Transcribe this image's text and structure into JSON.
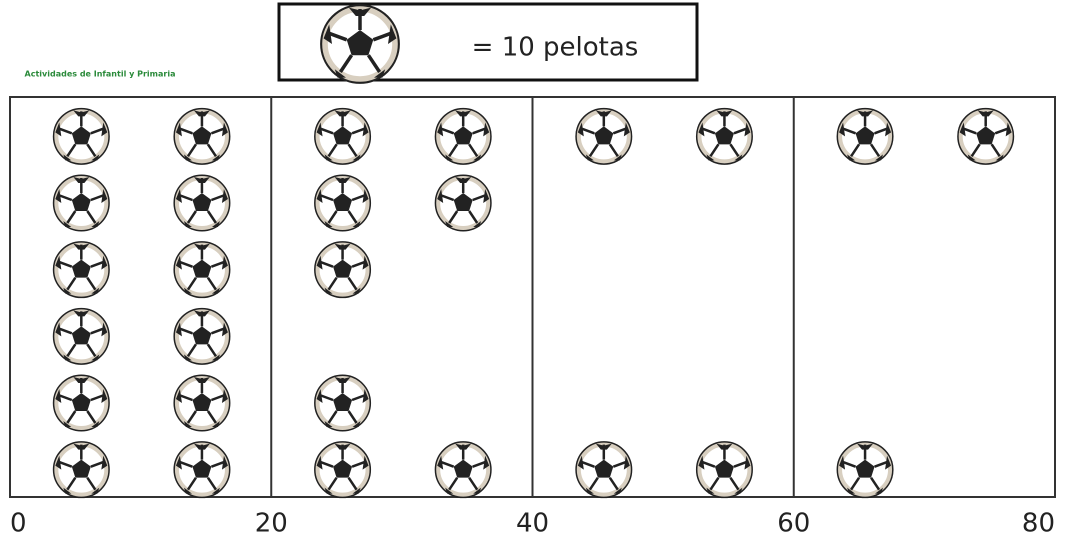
{
  "chart_data": {
    "type": "pictograph",
    "source_logo": "Actividades de Infantil y Primaria",
    "legend_label": "= 10 pelotas",
    "unit": 10,
    "categories": [
      null,
      null,
      null,
      null,
      null,
      null
    ],
    "values": [
      80,
      40,
      30,
      20,
      30,
      70
    ],
    "xlim": [
      0,
      80
    ],
    "xticks": [
      0,
      20,
      40,
      60,
      80
    ],
    "grid": true
  }
}
